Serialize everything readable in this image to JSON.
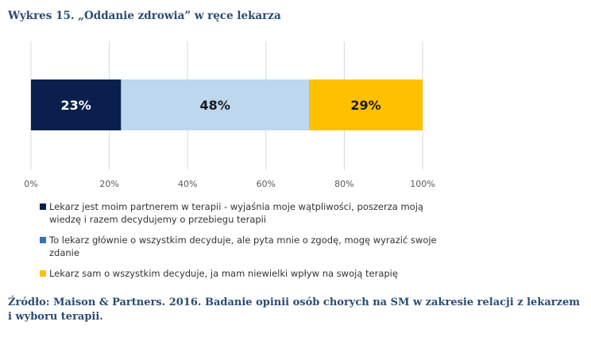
{
  "title": "Wykres 15. „Oddanie zdrowia” w ręce lekarza",
  "source": "Źródło: Maison & Partners. 2016. Badanie opinii osób chorych na SM w zakresie relacji z lekarzem i wyboru terapii.",
  "chart_data": {
    "type": "bar",
    "orientation": "horizontal",
    "stacked": true,
    "categories": [
      ""
    ],
    "series": [
      {
        "name": "Lekarz jest moim partnerem w terapii - wyjaśnia moje wątpliwości, poszerza moją wiedzę i razem decydujemy o przebiegu terapii",
        "values": [
          23
        ],
        "color": "#0b1f4f",
        "label": "23%",
        "label_color": "#ffffff"
      },
      {
        "name": "To lekarz głównie o wszystkim decyduje, ale pyta mnie o zgodę, mogę wyrazić swoje zdanie",
        "values": [
          48
        ],
        "color": "#bdd7ee",
        "label": "48%",
        "label_color": "#1a1a1a",
        "legend_color": "#2e75b6"
      },
      {
        "name": "Lekarz sam o wszystkim decyduje, ja mam niewielki wpływ na swoją terapię",
        "values": [
          29
        ],
        "color": "#ffc000",
        "label": "29%",
        "label_color": "#1a1a1a"
      }
    ],
    "xlim": [
      0,
      100
    ],
    "xticks": [
      "0%",
      "20%",
      "40%",
      "60%",
      "80%",
      "100%"
    ],
    "grid": true,
    "legend_position": "bottom"
  }
}
